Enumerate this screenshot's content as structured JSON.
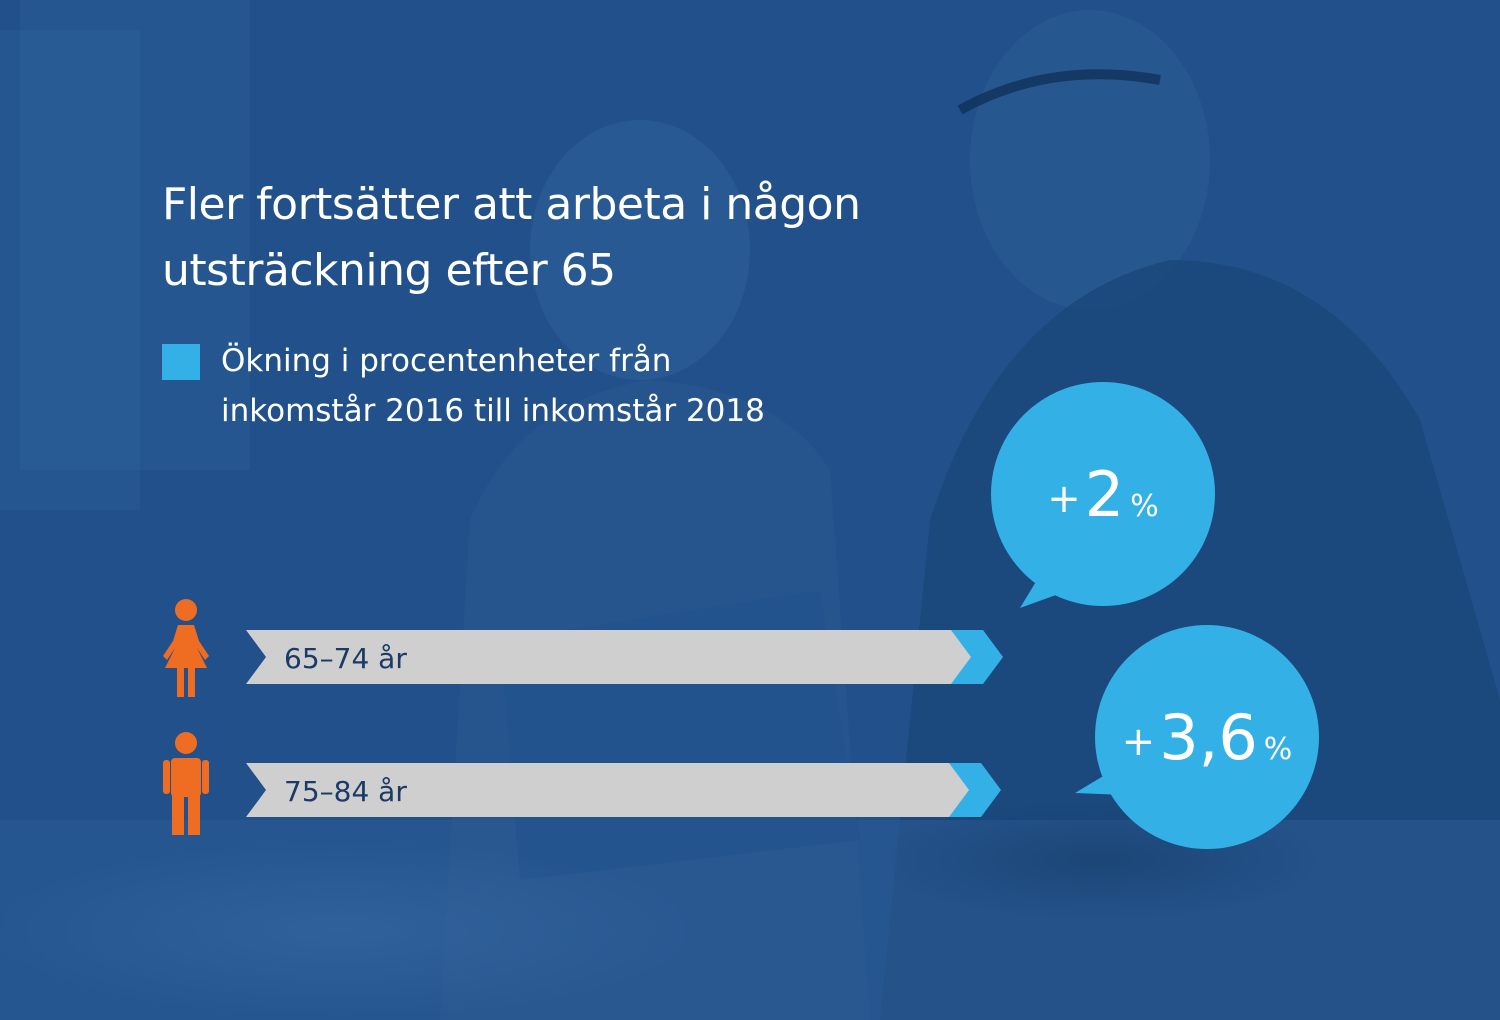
{
  "title_line1": "Fler fortsätter att arbeta i någon",
  "title_line2": "utsträckning efter 65",
  "legend": {
    "line1": "Ökning i procentenheter från",
    "line2": "inkomstår 2016 till inkomstår 2018",
    "color": "#33b1e6"
  },
  "colors": {
    "background": "#1f4e86",
    "bar": "#cfcfd0",
    "bar_tip": "#33b1e6",
    "bubble": "#33b1e6",
    "person_icon": "#ef6d22",
    "bar_text": "#1b3a66"
  },
  "chart_data": {
    "type": "bar",
    "orientation": "horizontal",
    "categories": [
      "65–74 år",
      "75–84 år"
    ],
    "icons": [
      "female-person-icon",
      "male-person-icon"
    ],
    "values": [
      2,
      3.6
    ],
    "value_labels": [
      {
        "prefix": "+",
        "number": "2",
        "suffix": "%"
      },
      {
        "prefix": "+",
        "number": "3,6",
        "suffix": "%"
      }
    ],
    "unit": "procentenheter",
    "title": "Fler fortsätter att arbeta i någon utsträckning efter 65",
    "legend": [
      "Ökning i procentenheter från inkomstår 2016 till inkomstår 2018"
    ]
  }
}
